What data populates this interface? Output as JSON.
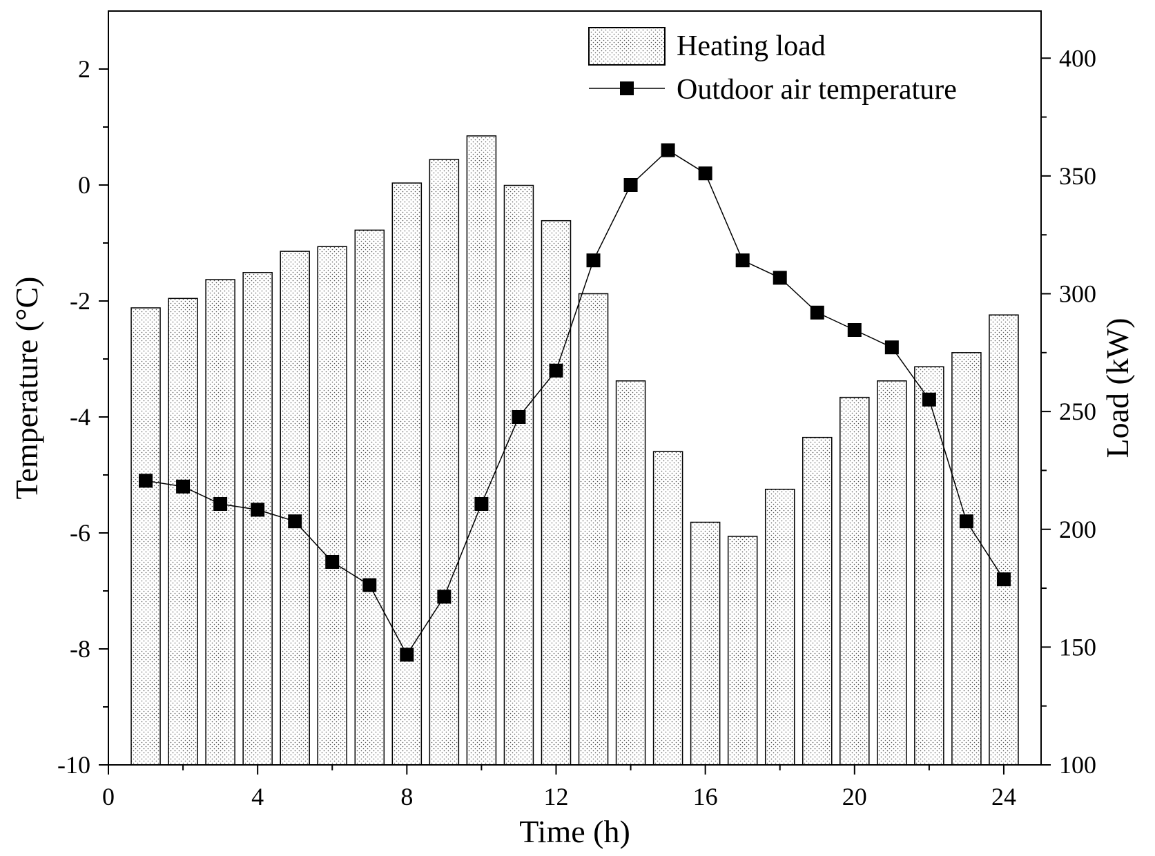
{
  "chart_data": {
    "type": "bar+line",
    "title": "",
    "xlabel": "Time (h)",
    "ylabel_left": "Temperature (°C)",
    "ylabel_right": "Load (kW)",
    "xlim": [
      0,
      25
    ],
    "xticks": [
      0,
      4,
      8,
      12,
      16,
      20,
      24
    ],
    "xtick_labels": [
      "0",
      "4",
      "8",
      "12",
      "16",
      "20",
      "24"
    ],
    "ylim_left": [
      -10,
      3
    ],
    "yticks_left": [
      -10,
      -8,
      -6,
      -4,
      -2,
      0,
      2
    ],
    "ytick_labels_left": [
      "-10",
      "-8",
      "-6",
      "-4",
      "-2",
      "0",
      "2"
    ],
    "ylim_right": [
      100,
      420
    ],
    "yticks_right": [
      100,
      150,
      200,
      250,
      300,
      350,
      400
    ],
    "ytick_labels_right": [
      "100",
      "150",
      "200",
      "250",
      "300",
      "350",
      "400"
    ],
    "x": [
      1,
      2,
      3,
      4,
      5,
      6,
      7,
      8,
      9,
      10,
      11,
      12,
      13,
      14,
      15,
      16,
      17,
      18,
      19,
      20,
      21,
      22,
      23,
      24
    ],
    "series": [
      {
        "name": "Heating load",
        "type": "bar",
        "axis": "right",
        "values": [
          294,
          298,
          306,
          309,
          318,
          320,
          327,
          347,
          357,
          367,
          346,
          331,
          300,
          263,
          233,
          203,
          197,
          217,
          239,
          256,
          263,
          269,
          275,
          291
        ]
      },
      {
        "name": "Outdoor air temperature",
        "type": "line",
        "axis": "left",
        "values": [
          -5.1,
          -5.2,
          -5.5,
          -5.6,
          -5.8,
          -6.5,
          -6.9,
          -8.1,
          -7.1,
          -5.5,
          -4.0,
          -3.2,
          -1.3,
          0.0,
          0.6,
          0.2,
          -1.3,
          -1.6,
          -2.2,
          -2.5,
          -2.8,
          -3.7,
          -5.8,
          -6.8
        ]
      }
    ],
    "legend": {
      "position": "top-right",
      "entries": [
        "Heating load",
        "Outdoor air temperature"
      ]
    },
    "grid": false
  }
}
